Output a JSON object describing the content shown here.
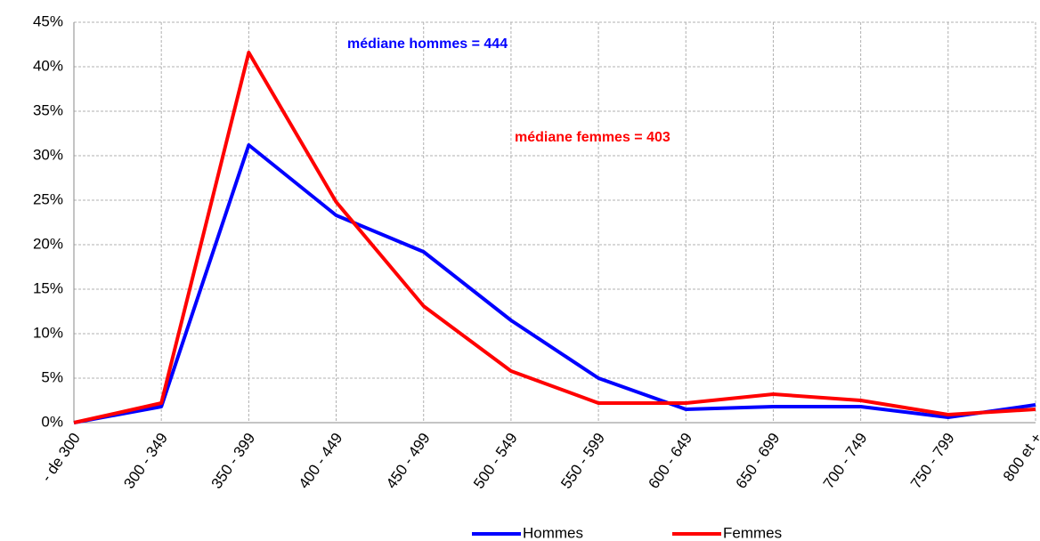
{
  "chart_data": {
    "type": "line",
    "categories": [
      "- de 300",
      "300 - 349",
      "350 - 399",
      "400 - 449",
      "450 - 499",
      "500 - 549",
      "550 - 599",
      "600 - 649",
      "650 - 699",
      "700 - 749",
      "750 - 799",
      "800 et +"
    ],
    "series": [
      {
        "name": "Hommes",
        "color": "#0000ff",
        "values": [
          0,
          1.8,
          31.2,
          23.3,
          19.2,
          11.5,
          5.0,
          1.5,
          1.8,
          1.8,
          0.6,
          2.0
        ]
      },
      {
        "name": "Femmes",
        "color": "#ff0000",
        "values": [
          0,
          2.2,
          41.6,
          24.8,
          13.1,
          5.8,
          2.2,
          2.2,
          3.2,
          2.5,
          0.9,
          1.5
        ]
      }
    ],
    "ylim": [
      0,
      45
    ],
    "yticks": [
      {
        "value": 0,
        "label": "0%"
      },
      {
        "value": 5,
        "label": "5%"
      },
      {
        "value": 10,
        "label": "10%"
      },
      {
        "value": 15,
        "label": "15%"
      },
      {
        "value": 20,
        "label": "20%"
      },
      {
        "value": 25,
        "label": "25%"
      },
      {
        "value": 30,
        "label": "30%"
      },
      {
        "value": 35,
        "label": "35%"
      },
      {
        "value": 40,
        "label": "40%"
      },
      {
        "value": 45,
        "label": "45%"
      }
    ],
    "grid": true,
    "legend": "bottom",
    "annotations": [
      {
        "text": "médiane hommes = 444",
        "color": "#0000ff"
      },
      {
        "text": "médiane femmes = 403",
        "color": "#ff0000"
      }
    ]
  }
}
